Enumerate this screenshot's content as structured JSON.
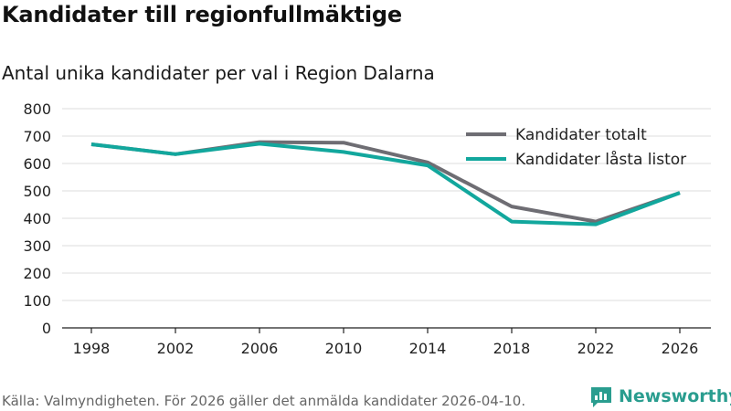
{
  "title": "Kandidater till regionfullmäktige",
  "subtitle": "Antal unika kandidater per val i Region Dalarna",
  "footer": "Källa: Valmyndigheten. För 2026 gäller det anmälda kandidater 2026-04-10.",
  "brand": "Newsworthy",
  "colors": {
    "total": "#6e6d73",
    "locked": "#12a79d",
    "grid": "#dddddd",
    "brand": "#2a9d8f"
  },
  "chart_data": {
    "type": "line",
    "title": "Kandidater till regionfullmäktige",
    "subtitle": "Antal unika kandidater per val i Region Dalarna",
    "xlabel": "",
    "ylabel": "",
    "x": [
      "1998",
      "2002",
      "2006",
      "2010",
      "2014",
      "2018",
      "2022",
      "2026"
    ],
    "ylim": [
      0,
      800
    ],
    "yticks": [
      0,
      100,
      200,
      300,
      400,
      500,
      600,
      700,
      800
    ],
    "grid": true,
    "legend": "top-right",
    "series": [
      {
        "name": "Kandidater totalt",
        "color": "#6e6d73",
        "values": [
          670,
          634,
          678,
          676,
          604,
          443,
          388,
          493
        ]
      },
      {
        "name": "Kandidater låsta listor",
        "color": "#12a79d",
        "values": [
          670,
          634,
          672,
          642,
          593,
          388,
          378,
          493
        ]
      }
    ]
  }
}
